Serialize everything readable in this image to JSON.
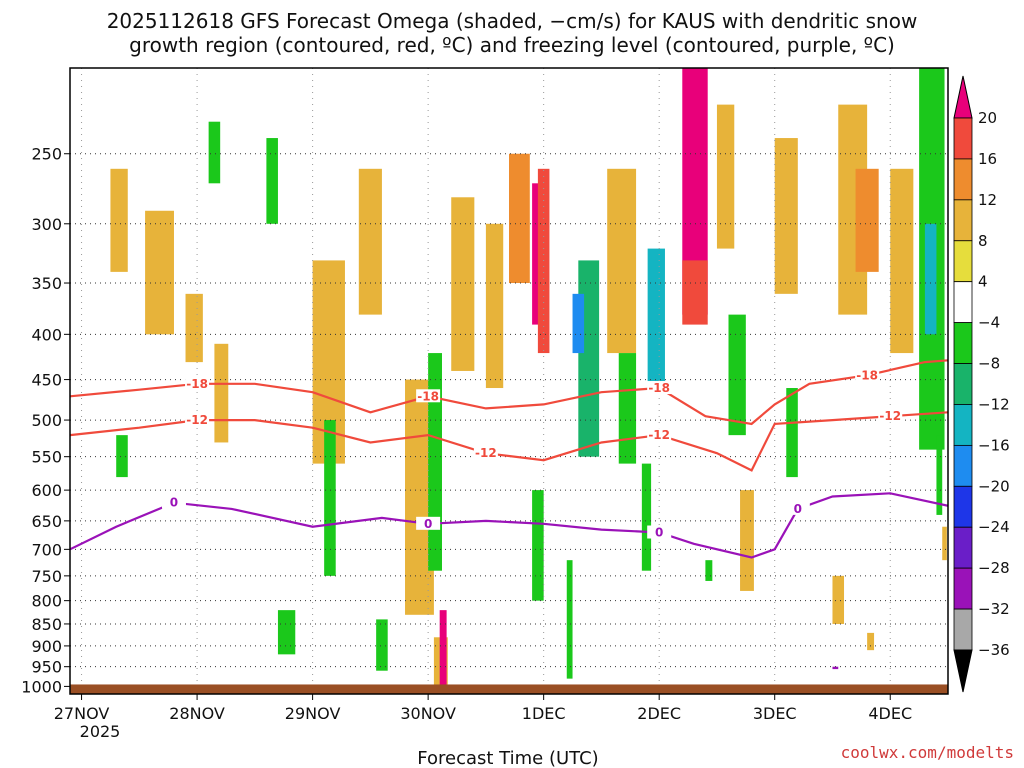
{
  "chart_data": {
    "type": "heatmap",
    "title_line1": "2025112618 GFS Forecast Omega (shaded, −cm/s) for KAUS with dendritic snow",
    "title_line2": "growth region (contoured, red, ºC) and freezing level (contoured, purple, ºC)",
    "xlabel": "Forecast Time (UTC)",
    "ylabel": "",
    "x_ticks": [
      "27NOV",
      "28NOV",
      "29NOV",
      "30NOV",
      "1DEC",
      "2DEC",
      "3DEC",
      "4DEC"
    ],
    "x_tick_year": "2025",
    "x_range_days": [
      -0.1,
      7.5
    ],
    "y_ticks": [
      250,
      300,
      350,
      400,
      450,
      500,
      550,
      600,
      650,
      700,
      750,
      800,
      850,
      900,
      950,
      1000
    ],
    "y_range_hpa": [
      200,
      1020
    ],
    "colorbar_labels": [
      "20",
      "16",
      "12",
      "8",
      "4",
      "−4",
      "−8",
      "−12",
      "−16",
      "−20",
      "−24",
      "−28",
      "−32",
      "−36"
    ],
    "colorbar_colors": [
      "#e8007a",
      "#f04a3c",
      "#ee8c2e",
      "#e7b33a",
      "#e6dd3c",
      "#ffffff",
      "#1bc81b",
      "#19b36a",
      "#14b4c2",
      "#1e8cf0",
      "#1e36e8",
      "#6a1ec8",
      "#9a12b8",
      "#a8a8a8"
    ],
    "cells": [
      {
        "t": 0.25,
        "p": 260,
        "w": 0.15,
        "h": 80,
        "v": 6
      },
      {
        "t": 0.55,
        "p": 290,
        "w": 0.25,
        "h": 110,
        "v": 6
      },
      {
        "t": 0.9,
        "p": 360,
        "w": 0.15,
        "h": 70,
        "v": 6
      },
      {
        "t": 1.15,
        "p": 410,
        "w": 0.12,
        "h": 120,
        "v": 6
      },
      {
        "t": 1.6,
        "p": 240,
        "w": 0.1,
        "h": 60,
        "v": -6
      },
      {
        "t": 1.1,
        "p": 230,
        "w": 0.1,
        "h": 40,
        "v": -6
      },
      {
        "t": 0.3,
        "p": 520,
        "w": 0.1,
        "h": 60,
        "v": -6
      },
      {
        "t": 2.0,
        "p": 330,
        "w": 0.28,
        "h": 230,
        "v": 6
      },
      {
        "t": 2.4,
        "p": 260,
        "w": 0.2,
        "h": 120,
        "v": 6
      },
      {
        "t": 2.1,
        "p": 500,
        "w": 0.1,
        "h": 250,
        "v": -6
      },
      {
        "t": 2.8,
        "p": 450,
        "w": 0.25,
        "h": 380,
        "v": 6
      },
      {
        "t": 3.0,
        "p": 420,
        "w": 0.12,
        "h": 320,
        "v": -6
      },
      {
        "t": 3.05,
        "p": 880,
        "w": 0.12,
        "h": 120,
        "v": 6
      },
      {
        "t": 3.1,
        "p": 820,
        "w": 0.06,
        "h": 180,
        "v": 16
      },
      {
        "t": 3.2,
        "p": 280,
        "w": 0.2,
        "h": 160,
        "v": 6
      },
      {
        "t": 3.5,
        "p": 300,
        "w": 0.15,
        "h": 160,
        "v": 6
      },
      {
        "t": 2.55,
        "p": 840,
        "w": 0.1,
        "h": 120,
        "v": -6
      },
      {
        "t": 1.7,
        "p": 820,
        "w": 0.15,
        "h": 100,
        "v": -6
      },
      {
        "t": 3.7,
        "p": 250,
        "w": 0.18,
        "h": 100,
        "v": 10
      },
      {
        "t": 3.9,
        "p": 270,
        "w": 0.06,
        "h": 120,
        "v": 20
      },
      {
        "t": 3.95,
        "p": 260,
        "w": 0.1,
        "h": 160,
        "v": 14
      },
      {
        "t": 3.9,
        "p": 600,
        "w": 0.1,
        "h": 200,
        "v": -6
      },
      {
        "t": 4.3,
        "p": 330,
        "w": 0.18,
        "h": 220,
        "v": -10
      },
      {
        "t": 4.25,
        "p": 360,
        "w": 0.1,
        "h": 60,
        "v": -16
      },
      {
        "t": 4.55,
        "p": 260,
        "w": 0.25,
        "h": 160,
        "v": 6
      },
      {
        "t": 4.65,
        "p": 420,
        "w": 0.15,
        "h": 140,
        "v": -6
      },
      {
        "t": 4.9,
        "p": 320,
        "w": 0.15,
        "h": 140,
        "v": -12
      },
      {
        "t": 4.85,
        "p": 560,
        "w": 0.08,
        "h": 180,
        "v": -6
      },
      {
        "t": 4.2,
        "p": 720,
        "w": 0.05,
        "h": 260,
        "v": -6
      },
      {
        "t": 5.2,
        "p": 200,
        "w": 0.22,
        "h": 180,
        "v": 20
      },
      {
        "t": 5.2,
        "p": 330,
        "w": 0.22,
        "h": 60,
        "v": 14
      },
      {
        "t": 5.5,
        "p": 220,
        "w": 0.15,
        "h": 100,
        "v": 6
      },
      {
        "t": 5.6,
        "p": 380,
        "w": 0.15,
        "h": 140,
        "v": -6
      },
      {
        "t": 5.7,
        "p": 600,
        "w": 0.12,
        "h": 180,
        "v": 6
      },
      {
        "t": 6.0,
        "p": 240,
        "w": 0.2,
        "h": 120,
        "v": 6
      },
      {
        "t": 6.55,
        "p": 220,
        "w": 0.25,
        "h": 160,
        "v": 6
      },
      {
        "t": 6.7,
        "p": 260,
        "w": 0.2,
        "h": 80,
        "v": 10
      },
      {
        "t": 7.0,
        "p": 260,
        "w": 0.2,
        "h": 160,
        "v": 6
      },
      {
        "t": 7.25,
        "p": 200,
        "w": 0.22,
        "h": 340,
        "v": -6
      },
      {
        "t": 7.3,
        "p": 300,
        "w": 0.1,
        "h": 100,
        "v": -12
      },
      {
        "t": 7.4,
        "p": 520,
        "w": 0.05,
        "h": 120,
        "v": -6
      },
      {
        "t": 7.45,
        "p": 660,
        "w": 0.04,
        "h": 60,
        "v": 6
      },
      {
        "t": 6.1,
        "p": 460,
        "w": 0.1,
        "h": 120,
        "v": -6
      },
      {
        "t": 6.5,
        "p": 750,
        "w": 0.1,
        "h": 100,
        "v": 6
      },
      {
        "t": 6.8,
        "p": 870,
        "w": 0.06,
        "h": 40,
        "v": 6
      },
      {
        "t": 5.4,
        "p": 720,
        "w": 0.06,
        "h": 40,
        "v": -6
      },
      {
        "t": 6.5,
        "p": 950,
        "w": 0.05,
        "h": 6,
        "v": -30
      }
    ],
    "snow_growth_region": {
      "contour_-18": {
        "label": "-18",
        "points": [
          [
            -0.1,
            470
          ],
          [
            0.5,
            462
          ],
          [
            1.0,
            455
          ],
          [
            1.5,
            455
          ],
          [
            2.0,
            465
          ],
          [
            2.5,
            490
          ],
          [
            3.0,
            470
          ],
          [
            3.5,
            485
          ],
          [
            4.0,
            480
          ],
          [
            4.5,
            465
          ],
          [
            5.0,
            460
          ],
          [
            5.4,
            495
          ],
          [
            5.8,
            505
          ],
          [
            6.0,
            480
          ],
          [
            6.3,
            455
          ],
          [
            6.8,
            445
          ],
          [
            7.3,
            430
          ],
          [
            7.5,
            428
          ]
        ]
      },
      "contour_-12": {
        "label": "-12",
        "points": [
          [
            -0.1,
            520
          ],
          [
            0.5,
            510
          ],
          [
            1.0,
            500
          ],
          [
            1.5,
            500
          ],
          [
            2.0,
            510
          ],
          [
            2.5,
            530
          ],
          [
            3.0,
            520
          ],
          [
            3.5,
            545
          ],
          [
            4.0,
            555
          ],
          [
            4.5,
            530
          ],
          [
            5.0,
            520
          ],
          [
            5.5,
            545
          ],
          [
            5.8,
            570
          ],
          [
            6.0,
            505
          ],
          [
            6.5,
            500
          ],
          [
            7.0,
            495
          ],
          [
            7.5,
            490
          ]
        ]
      }
    },
    "freezing_level": {
      "label": "0",
      "points": [
        [
          -0.1,
          700
        ],
        [
          0.3,
          660
        ],
        [
          0.8,
          620
        ],
        [
          1.3,
          630
        ],
        [
          2.0,
          660
        ],
        [
          2.6,
          645
        ],
        [
          3.0,
          655
        ],
        [
          3.5,
          650
        ],
        [
          4.0,
          655
        ],
        [
          4.5,
          665
        ],
        [
          5.0,
          670
        ],
        [
          5.3,
          690
        ],
        [
          5.8,
          715
        ],
        [
          6.0,
          700
        ],
        [
          6.2,
          630
        ],
        [
          6.5,
          610
        ],
        [
          7.0,
          605
        ],
        [
          7.5,
          625
        ]
      ]
    },
    "credit": "coolwx.com/modelts"
  }
}
